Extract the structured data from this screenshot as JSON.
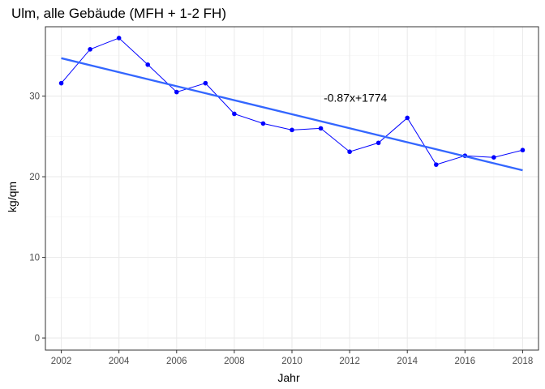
{
  "chart_data": {
    "type": "line",
    "title": "Ulm, alle Gebäude (MFH + 1-2 FH)",
    "xlabel": "Jahr",
    "ylabel": "kg/qm",
    "xlim": [
      2001.45,
      2018.55
    ],
    "ylim": [
      -1.5,
      38.6
    ],
    "x_ticks": [
      2002,
      2004,
      2006,
      2008,
      2010,
      2012,
      2014,
      2016,
      2018
    ],
    "y_ticks": [
      0,
      10,
      20,
      30
    ],
    "grid": true,
    "series": [
      {
        "points": [
          {
            "x": 2002,
            "y": 31.6
          },
          {
            "x": 2003,
            "y": 35.8
          },
          {
            "x": 2004,
            "y": 37.2
          },
          {
            "x": 2005,
            "y": 33.9
          },
          {
            "x": 2006,
            "y": 30.5
          },
          {
            "x": 2007,
            "y": 31.6
          },
          {
            "x": 2008,
            "y": 27.8
          },
          {
            "x": 2009,
            "y": 26.6
          },
          {
            "x": 2010,
            "y": 25.8
          },
          {
            "x": 2011,
            "y": 26.0
          },
          {
            "x": 2012,
            "y": 23.1
          },
          {
            "x": 2013,
            "y": 24.2
          },
          {
            "x": 2014,
            "y": 27.3
          },
          {
            "x": 2015,
            "y": 21.5
          },
          {
            "x": 2016,
            "y": 22.6
          },
          {
            "x": 2017,
            "y": 22.4
          },
          {
            "x": 2018,
            "y": 23.3
          }
        ],
        "color": "#0000ff"
      }
    ],
    "trendline": {
      "label": "-0.87x+1774",
      "label_at": {
        "x": 2012.2,
        "y": 29.8
      },
      "start": {
        "x": 2002,
        "y": 34.7
      },
      "end": {
        "x": 2018,
        "y": 20.8
      },
      "color": "#3366ff"
    }
  }
}
